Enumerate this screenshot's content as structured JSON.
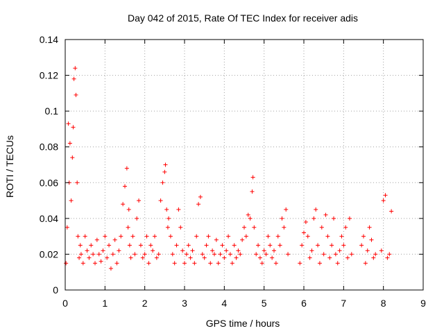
{
  "chart_data": {
    "type": "scatter",
    "title": "Day 042 of 2015, Rate Of TEC Index for receiver adis",
    "xlabel": "GPS time / hours",
    "ylabel": "ROTI / TECUs",
    "xlim": [
      0,
      9
    ],
    "ylim": [
      0,
      0.14
    ],
    "xticks": [
      "0",
      "1",
      "2",
      "3",
      "4",
      "5",
      "6",
      "7",
      "8",
      "9"
    ],
    "yticks": [
      "0",
      "0.02",
      "0.04",
      "0.06",
      "0.08",
      "0.1",
      "0.12",
      "0.14"
    ],
    "grid": true,
    "marker": "+",
    "color": "#ff0000",
    "series": [
      {
        "name": "ROTI",
        "x": [
          0.02,
          0.05,
          0.08,
          0.1,
          0.12,
          0.15,
          0.18,
          0.2,
          0.22,
          0.25,
          0.27,
          0.3,
          0.32,
          0.35,
          0.38,
          0.4,
          0.45,
          0.5,
          0.55,
          0.6,
          0.65,
          0.7,
          0.75,
          0.8,
          0.85,
          0.9,
          0.95,
          1.0,
          1.05,
          1.1,
          1.15,
          1.2,
          1.25,
          1.3,
          1.35,
          1.4,
          1.45,
          1.5,
          1.55,
          1.58,
          1.6,
          1.62,
          1.65,
          1.7,
          1.75,
          1.8,
          1.85,
          1.9,
          1.95,
          2.0,
          2.05,
          2.1,
          2.15,
          2.2,
          2.25,
          2.3,
          2.35,
          2.4,
          2.45,
          2.5,
          2.52,
          2.55,
          2.58,
          2.6,
          2.65,
          2.7,
          2.75,
          2.8,
          2.85,
          2.9,
          2.95,
          3.0,
          3.05,
          3.1,
          3.15,
          3.2,
          3.25,
          3.3,
          3.35,
          3.4,
          3.45,
          3.5,
          3.55,
          3.6,
          3.65,
          3.7,
          3.75,
          3.8,
          3.85,
          3.9,
          3.95,
          4.0,
          4.05,
          4.1,
          4.15,
          4.2,
          4.25,
          4.3,
          4.35,
          4.4,
          4.45,
          4.5,
          4.55,
          4.6,
          4.65,
          4.7,
          4.72,
          4.75,
          4.8,
          4.85,
          4.9,
          4.95,
          5.0,
          5.05,
          5.1,
          5.15,
          5.2,
          5.25,
          5.3,
          5.35,
          5.4,
          5.45,
          5.5,
          5.55,
          5.6,
          5.9,
          5.95,
          6.0,
          6.05,
          6.1,
          6.15,
          6.2,
          6.25,
          6.3,
          6.35,
          6.4,
          6.45,
          6.5,
          6.55,
          6.6,
          6.65,
          6.7,
          6.75,
          6.8,
          6.85,
          6.9,
          6.95,
          7.0,
          7.05,
          7.1,
          7.15,
          7.2,
          7.45,
          7.5,
          7.55,
          7.6,
          7.65,
          7.7,
          7.75,
          7.8,
          7.95,
          8.0,
          8.05,
          8.1,
          8.15,
          8.2
        ],
        "y": [
          0.015,
          0.035,
          0.093,
          0.06,
          0.082,
          0.05,
          0.074,
          0.091,
          0.118,
          0.124,
          0.109,
          0.06,
          0.03,
          0.018,
          0.025,
          0.02,
          0.015,
          0.03,
          0.022,
          0.018,
          0.025,
          0.02,
          0.015,
          0.028,
          0.02,
          0.016,
          0.022,
          0.03,
          0.018,
          0.025,
          0.012,
          0.02,
          0.028,
          0.015,
          0.022,
          0.03,
          0.048,
          0.058,
          0.068,
          0.035,
          0.045,
          0.025,
          0.018,
          0.03,
          0.02,
          0.04,
          0.05,
          0.025,
          0.018,
          0.02,
          0.03,
          0.015,
          0.025,
          0.022,
          0.03,
          0.018,
          0.02,
          0.05,
          0.06,
          0.066,
          0.07,
          0.045,
          0.035,
          0.04,
          0.03,
          0.02,
          0.015,
          0.025,
          0.045,
          0.035,
          0.022,
          0.015,
          0.02,
          0.025,
          0.018,
          0.022,
          0.015,
          0.03,
          0.048,
          0.052,
          0.02,
          0.018,
          0.025,
          0.03,
          0.015,
          0.022,
          0.02,
          0.028,
          0.015,
          0.02,
          0.025,
          0.018,
          0.022,
          0.03,
          0.02,
          0.015,
          0.025,
          0.018,
          0.022,
          0.02,
          0.028,
          0.035,
          0.03,
          0.042,
          0.04,
          0.055,
          0.063,
          0.035,
          0.02,
          0.025,
          0.018,
          0.015,
          0.022,
          0.02,
          0.03,
          0.025,
          0.018,
          0.022,
          0.015,
          0.03,
          0.025,
          0.04,
          0.035,
          0.045,
          0.02,
          0.015,
          0.025,
          0.032,
          0.038,
          0.03,
          0.018,
          0.022,
          0.04,
          0.045,
          0.025,
          0.015,
          0.035,
          0.02,
          0.042,
          0.03,
          0.018,
          0.025,
          0.04,
          0.02,
          0.015,
          0.022,
          0.03,
          0.025,
          0.035,
          0.018,
          0.04,
          0.02,
          0.025,
          0.03,
          0.015,
          0.022,
          0.035,
          0.028,
          0.018,
          0.02,
          0.022,
          0.05,
          0.053,
          0.018,
          0.02,
          0.044
        ]
      }
    ]
  }
}
